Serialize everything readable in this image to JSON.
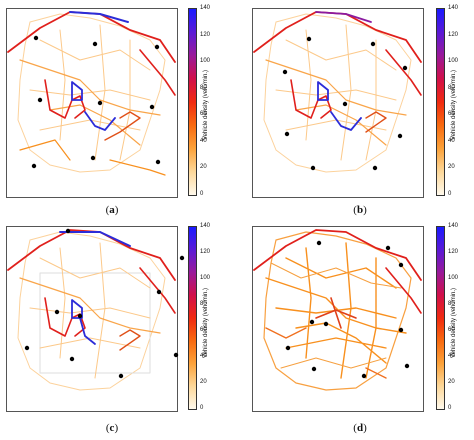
{
  "colorbar": {
    "label": "Vehicle density (veh./min.)",
    "ticks": [
      "140",
      "120",
      "100",
      "80",
      "60",
      "40",
      "20",
      "0"
    ],
    "gradient": [
      "#1a1aff",
      "#5a1ad6",
      "#9a1a9a",
      "#d1104a",
      "#f02a10",
      "#f86a10",
      "#fca23a",
      "#fdd89a",
      "#fff9ec"
    ]
  },
  "panels": [
    {
      "id": "a",
      "caption_open": "(",
      "caption_letter": "a",
      "caption_close": ")"
    },
    {
      "id": "b",
      "caption_open": "(",
      "caption_letter": "b",
      "caption_close": ")"
    },
    {
      "id": "c",
      "caption_open": "(",
      "caption_letter": "c",
      "caption_close": ")"
    },
    {
      "id": "d",
      "caption_open": "(",
      "caption_letter": "d",
      "caption_close": ")"
    }
  ],
  "colors": {
    "road_light": "#fcc98a",
    "road_mid": "#f8901e",
    "road_red": "#e0201c",
    "road_blue": "#2c2cd8",
    "road_purple": "#8a1aa0",
    "marker": "#000000"
  }
}
